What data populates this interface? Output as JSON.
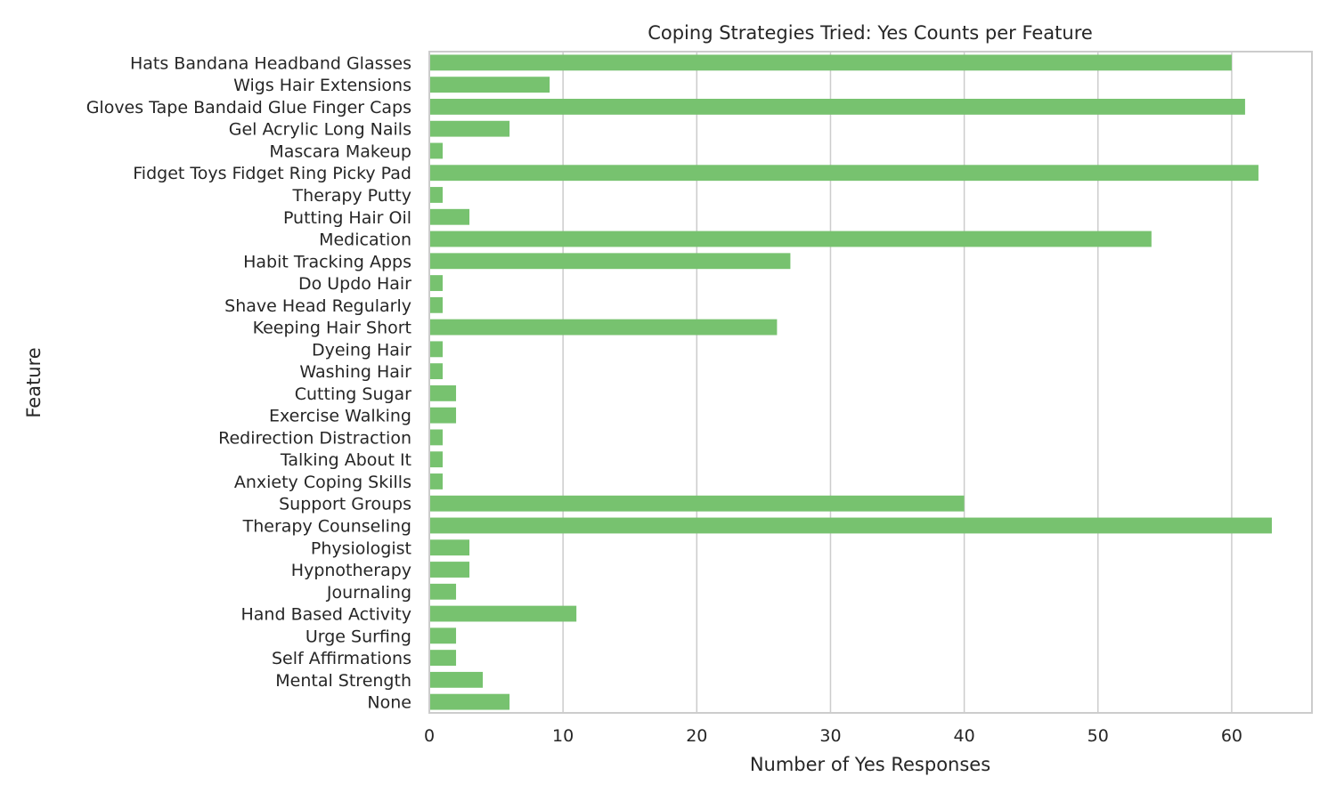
{
  "chart_data": {
    "type": "bar",
    "orientation": "horizontal",
    "title": "Coping Strategies Tried: Yes Counts per Feature",
    "xlabel": "Number of Yes Responses",
    "ylabel": "Feature",
    "xlim": [
      0,
      66
    ],
    "xticks": [
      0,
      10,
      20,
      30,
      40,
      50,
      60
    ],
    "grid": "vertical",
    "bar_color": "#77c26f",
    "categories": [
      "Hats Bandana Headband Glasses",
      "Wigs Hair Extensions",
      "Gloves Tape Bandaid Glue Finger Caps",
      "Gel Acrylic Long Nails",
      "Mascara Makeup",
      "Fidget Toys Fidget Ring Picky Pad",
      "Therapy Putty",
      "Putting Hair Oil",
      "Medication",
      "Habit Tracking Apps",
      "Do Updo Hair",
      "Shave Head Regularly",
      "Keeping Hair Short",
      "Dyeing Hair",
      "Washing Hair",
      "Cutting Sugar",
      "Exercise Walking",
      "Redirection Distraction",
      "Talking About It",
      "Anxiety Coping Skills",
      "Support Groups",
      "Therapy Counseling",
      "Physiologist",
      "Hypnotherapy",
      "Journaling",
      "Hand Based Activity",
      "Urge Surfing",
      "Self Affirmations",
      "Mental Strength",
      "None"
    ],
    "values": [
      60,
      9,
      61,
      6,
      1,
      62,
      1,
      3,
      54,
      27,
      1,
      1,
      26,
      1,
      1,
      2,
      2,
      1,
      1,
      1,
      40,
      63,
      3,
      3,
      2,
      11,
      2,
      2,
      4,
      6
    ]
  }
}
